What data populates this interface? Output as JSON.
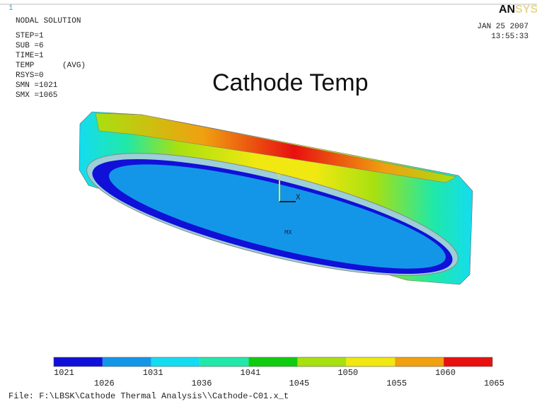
{
  "window_number": "1",
  "header": {
    "solution": "NODAL SOLUTION",
    "lines": [
      "STEP=1",
      "SUB =6",
      "TIME=1",
      "TEMP      (AVG)",
      "RSYS=0",
      "SMN =1021",
      "SMX =1065"
    ]
  },
  "logo": {
    "bold": "AN",
    "faded": "SYS"
  },
  "date": "JAN 25 2007",
  "time": "13:55:33",
  "title": "Cathode Temp",
  "model_labels": {
    "y_axis": "Y",
    "x_axis": "X",
    "max": "MX"
  },
  "legend": {
    "colors": [
      "#1010d8",
      "#1496e8",
      "#14dcf0",
      "#20e8a8",
      "#10cc10",
      "#a8e010",
      "#f0e810",
      "#f0a010",
      "#e81010"
    ],
    "labels": [
      1021,
      1026,
      1031,
      1036,
      1041,
      1045,
      1050,
      1055,
      1060,
      1065
    ]
  },
  "footer": "File: F:\\LBSK\\Cathode Thermal Analysis\\\\Cathode-C01.x_t"
}
